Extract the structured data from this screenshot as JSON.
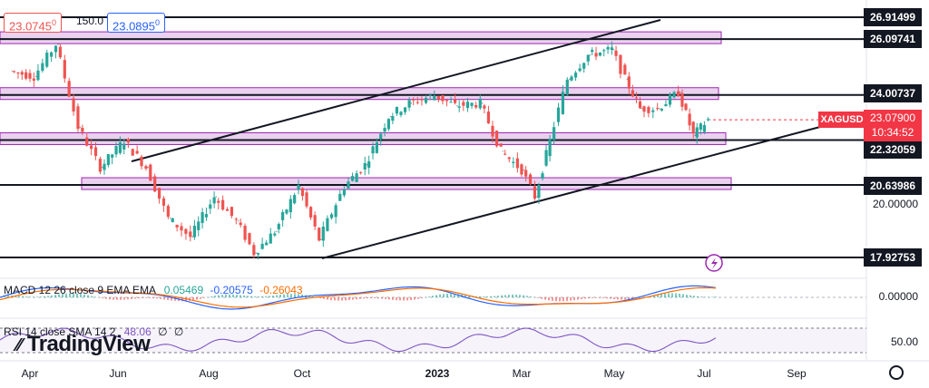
{
  "header": {
    "bid": "23.0745",
    "bid_sup": "0",
    "spread": "150.0",
    "ask": "23.0895",
    "ask_sup": "0"
  },
  "price_axis": {
    "levels": [
      "26.91499",
      "26.09741",
      "24.00737",
      "22.32059",
      "20.63986",
      "17.92753"
    ],
    "labels": [
      "20.00000"
    ],
    "symbol": "XAGUSD",
    "last": "23.07900",
    "countdown": "10:34:52"
  },
  "indicators": {
    "macd": {
      "title": "MACD 12 26 close 9 EMA EMA",
      "v1": "0.05469",
      "v2": "-0.20575",
      "v3": "-0.26043",
      "axis": "0.00000"
    },
    "rsi": {
      "title": "RSI 14 close SMA 14 2",
      "v1": "48.06",
      "v2": "∅",
      "v3": "∅",
      "axis": "50.00"
    }
  },
  "time_axis": [
    "Apr",
    "Jun",
    "Aug",
    "Oct",
    "2023",
    "Mar",
    "May",
    "Jul",
    "Sep"
  ],
  "branding": {
    "logo_text": "TradingView"
  },
  "colors": {
    "up": "#26a69a",
    "down": "#ef5350",
    "zone_fill": "#e1bee7",
    "zone_border": "#9c27b0",
    "macd": "#2962ff",
    "signal": "#ff6d00",
    "rsi": "#7e57c2"
  },
  "chart_data": {
    "type": "line",
    "symbol": "XAGUSD",
    "x": [
      "2022-03-20",
      "2022-04-05",
      "2022-04-20",
      "2022-05-05",
      "2022-05-20",
      "2022-06-05",
      "2022-06-20",
      "2022-07-05",
      "2022-07-20",
      "2022-08-05",
      "2022-08-20",
      "2022-09-01",
      "2022-09-15",
      "2022-10-01",
      "2022-10-15",
      "2022-11-01",
      "2022-11-15",
      "2022-12-01",
      "2022-12-15",
      "2023-01-01",
      "2023-01-15",
      "2023-02-01",
      "2023-02-15",
      "2023-03-01",
      "2023-03-10",
      "2023-03-20",
      "2023-04-01",
      "2023-04-15",
      "2023-05-01",
      "2023-05-10",
      "2023-05-20",
      "2023-06-01",
      "2023-06-15",
      "2023-06-25",
      "2023-07-05"
    ],
    "series": [
      {
        "values": [
          24.9,
          24.7,
          25.9,
          22.8,
          21.3,
          22.3,
          21.3,
          19.4,
          18.7,
          20.2,
          19.3,
          18.1,
          18.9,
          20.6,
          18.6,
          20.6,
          21.4,
          23.2,
          23.7,
          24.0,
          23.6,
          23.7,
          21.9,
          21.2,
          20.2,
          22.3,
          24.6,
          25.5,
          25.7,
          24.6,
          23.5,
          23.5,
          24.1,
          22.5,
          23.08
        ]
      }
    ],
    "horizontal_levels": [
      26.91499,
      26.09741,
      24.00737,
      22.32059,
      20.63986,
      17.92753
    ],
    "last_price": 23.079,
    "ylim": [
      17.5,
      27.2
    ]
  }
}
